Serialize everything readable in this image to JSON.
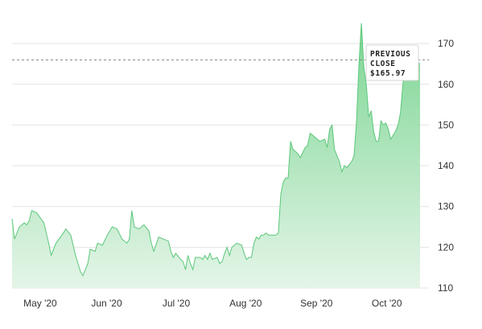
{
  "chart_data": {
    "type": "area",
    "series": [
      {
        "values": [
          [
            0,
            127
          ],
          [
            1,
            122
          ],
          [
            3,
            125
          ],
          [
            5,
            126
          ],
          [
            6,
            125.5
          ],
          [
            7,
            126.5
          ],
          [
            8,
            129
          ],
          [
            10,
            128.5
          ],
          [
            13,
            126
          ],
          [
            15,
            121
          ],
          [
            16,
            118
          ],
          [
            18,
            121
          ],
          [
            21,
            123.5
          ],
          [
            22,
            124.5
          ],
          [
            24,
            123
          ],
          [
            26,
            118
          ],
          [
            28,
            114
          ],
          [
            29,
            113
          ],
          [
            31,
            116
          ],
          [
            32,
            119.5
          ],
          [
            34,
            119
          ],
          [
            35,
            121
          ],
          [
            37,
            120.5
          ],
          [
            39,
            123
          ],
          [
            41,
            125
          ],
          [
            43,
            124.5
          ],
          [
            45,
            122
          ],
          [
            47,
            121
          ],
          [
            48,
            122
          ],
          [
            49,
            129
          ],
          [
            50,
            125
          ],
          [
            52,
            124.5
          ],
          [
            54,
            125.5
          ],
          [
            56,
            124
          ],
          [
            57,
            121
          ],
          [
            58,
            119
          ],
          [
            60,
            122.5
          ],
          [
            62,
            122
          ],
          [
            64,
            121.5
          ],
          [
            65,
            119
          ],
          [
            66,
            117.5
          ],
          [
            67,
            118.5
          ],
          [
            69,
            117
          ],
          [
            70,
            116.5
          ],
          [
            71,
            114.5
          ],
          [
            72,
            118
          ],
          [
            73,
            116
          ],
          [
            74,
            114.5
          ],
          [
            75,
            117.5
          ],
          [
            77,
            117.5
          ],
          [
            78,
            117
          ],
          [
            79,
            118
          ],
          [
            80,
            117
          ],
          [
            81,
            118.5
          ],
          [
            82,
            117
          ],
          [
            84,
            117.5
          ],
          [
            85,
            116
          ],
          [
            86,
            116.5
          ],
          [
            87,
            118.5
          ],
          [
            88,
            120
          ],
          [
            89,
            118
          ],
          [
            90,
            120
          ],
          [
            91,
            120.5
          ],
          [
            92,
            121
          ],
          [
            94,
            120.5
          ],
          [
            95,
            118.5
          ],
          [
            96,
            117
          ],
          [
            97,
            117.5
          ],
          [
            98,
            117.5
          ],
          [
            99,
            121
          ],
          [
            100,
            122.5
          ],
          [
            101,
            122
          ],
          [
            102,
            123
          ],
          [
            103,
            123
          ],
          [
            104,
            123.5
          ],
          [
            105,
            123
          ],
          [
            107,
            123
          ],
          [
            108,
            123
          ],
          [
            109,
            123.5
          ],
          [
            110,
            133
          ],
          [
            111,
            136
          ],
          [
            112,
            137
          ],
          [
            113,
            137
          ],
          [
            114,
            146
          ],
          [
            115,
            144
          ],
          [
            117,
            143
          ],
          [
            118,
            142
          ],
          [
            120,
            144.5
          ],
          [
            121,
            145
          ],
          [
            122,
            148
          ],
          [
            124,
            147
          ],
          [
            126,
            146
          ],
          [
            128,
            146.5
          ],
          [
            129,
            144.5
          ],
          [
            130,
            149
          ],
          [
            131,
            150
          ],
          [
            132,
            144
          ],
          [
            134,
            141
          ],
          [
            135,
            138.5
          ],
          [
            136,
            140
          ],
          [
            137,
            139.5
          ],
          [
            139,
            141
          ],
          [
            140,
            142.5
          ],
          [
            141,
            151
          ],
          [
            142,
            165
          ],
          [
            143,
            175
          ],
          [
            144,
            164
          ],
          [
            145,
            160
          ],
          [
            146,
            152
          ],
          [
            147,
            153.5
          ],
          [
            148,
            148.5
          ],
          [
            149,
            146
          ],
          [
            150,
            146
          ],
          [
            151,
            151
          ],
          [
            152,
            150
          ],
          [
            153,
            150.5
          ],
          [
            154,
            149
          ],
          [
            155,
            146.5
          ],
          [
            157,
            148.5
          ],
          [
            158,
            150
          ],
          [
            159,
            153
          ],
          [
            160,
            160
          ],
          [
            161,
            165.5
          ],
          [
            162,
            164.5
          ],
          [
            164,
            166
          ],
          [
            167,
            165
          ]
        ]
      }
    ],
    "x_ticks": [
      {
        "pos": 11.5,
        "label": "May '20"
      },
      {
        "pos": 38.7,
        "label": "Jun '20"
      },
      {
        "pos": 67.2,
        "label": "Jul '20"
      },
      {
        "pos": 95.6,
        "label": "Aug '20"
      },
      {
        "pos": 124.6,
        "label": "Sep '20"
      },
      {
        "pos": 153.4,
        "label": "Oct '20"
      }
    ],
    "y_ticks": [
      110,
      120,
      130,
      140,
      150,
      160,
      170
    ],
    "xlim": [
      0,
      167
    ],
    "ylim": [
      110,
      175
    ],
    "grid": true,
    "reference_line": {
      "value": 165.97,
      "style": "dashed",
      "label_lines": [
        "PREVIOUS",
        "CLOSE",
        "$165.97"
      ]
    },
    "colors": {
      "area_top": "#7bd592",
      "area_bottom": "#e4f5e8",
      "line": "#5bc77a",
      "grid": "#e3e3e3",
      "reference": "#8a8a8a"
    },
    "xlabel": "",
    "ylabel": ""
  }
}
